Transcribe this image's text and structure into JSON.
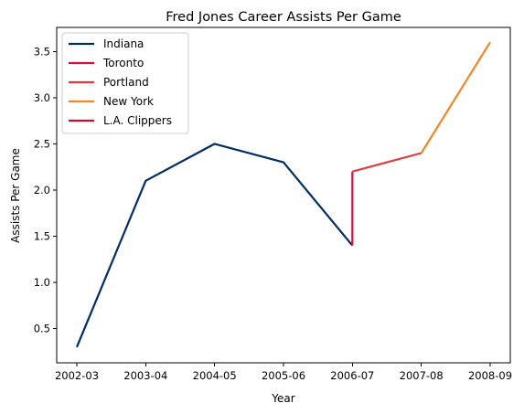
{
  "chart_data": {
    "type": "line",
    "title": "Fred Jones  Career Assists Per Game",
    "xlabel": "Year",
    "ylabel": "Assists Per Game",
    "categories": [
      "2002-03",
      "2003-04",
      "2004-05",
      "2005-06",
      "2006-07",
      "2007-08",
      "2008-09"
    ],
    "ylim": [
      0.13,
      3.76
    ],
    "yticks": [
      0.5,
      1.0,
      1.5,
      2.0,
      2.5,
      3.0,
      3.5
    ],
    "ytick_labels": [
      "0.5",
      "1.0",
      "1.5",
      "2.0",
      "2.5",
      "3.0",
      "3.5"
    ],
    "grid": false,
    "legend_position": "upper-left",
    "series": [
      {
        "name": "Indiana",
        "color": "#002d62",
        "points": [
          {
            "x": "2002-03",
            "y": 0.3
          },
          {
            "x": "2003-04",
            "y": 2.1
          },
          {
            "x": "2004-05",
            "y": 2.5
          },
          {
            "x": "2005-06",
            "y": 2.3
          },
          {
            "x": "2006-07",
            "y": 1.4
          }
        ]
      },
      {
        "name": "Toronto",
        "color": "#ce1141",
        "points": [
          {
            "x": "2006-07",
            "y": 1.4
          },
          {
            "x": "2006-07",
            "y": 2.2
          }
        ]
      },
      {
        "name": "Portland",
        "color": "#e03a3e",
        "points": [
          {
            "x": "2006-07",
            "y": 2.2
          },
          {
            "x": "2007-08",
            "y": 2.4
          }
        ]
      },
      {
        "name": "New York",
        "color": "#f58426",
        "points": [
          {
            "x": "2007-08",
            "y": 2.4
          },
          {
            "x": "2008-09",
            "y": 3.6
          }
        ]
      },
      {
        "name": "L.A. Clippers",
        "color": "#c8102e",
        "points": []
      }
    ]
  }
}
